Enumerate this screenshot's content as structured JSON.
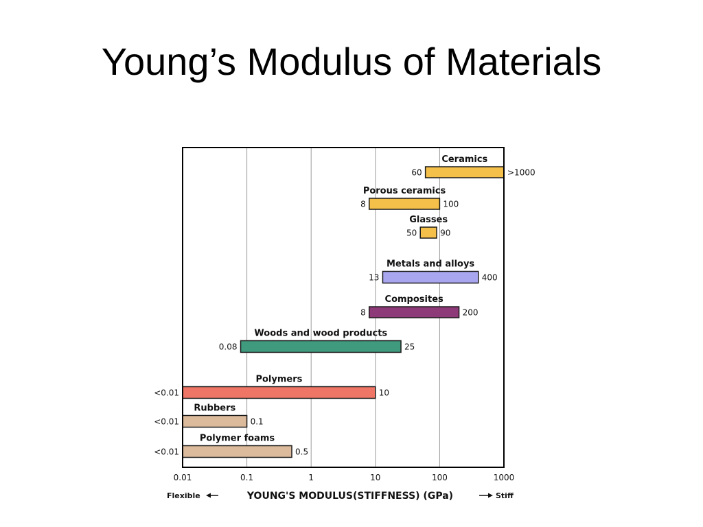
{
  "slide": {
    "title": "Young’s Modulus of Materials"
  },
  "chart_data": {
    "type": "bar",
    "orientation": "horizontal-range",
    "xscale": "log",
    "xlim": [
      0.01,
      1000
    ],
    "xticks": [
      "0.01",
      "0.1",
      "1",
      "10",
      "100",
      "1000"
    ],
    "xtick_values": [
      0.01,
      0.1,
      1,
      10,
      100,
      1000
    ],
    "xlabel": "YOUNG'S MODULUS(STIFFNESS) (GPa)",
    "xlabel_left": "Flexible",
    "xlabel_right": "Stiff",
    "grid": "vertical at each decade",
    "bars": [
      {
        "name": "Ceramics",
        "low": 60,
        "high": 1000,
        "low_label": "60",
        "high_label": ">1000",
        "color": "#f5c04a"
      },
      {
        "name": "Porous ceramics",
        "low": 8,
        "high": 100,
        "low_label": "8",
        "high_label": "100",
        "color": "#f5c04a"
      },
      {
        "name": "Glasses",
        "low": 50,
        "high": 90,
        "low_label": "50",
        "high_label": "90",
        "color": "#f5c04a"
      },
      {
        "name": "Metals and alloys",
        "low": 13,
        "high": 400,
        "low_label": "13",
        "high_label": "400",
        "color": "#a9a6f0"
      },
      {
        "name": "Composites",
        "low": 8,
        "high": 200,
        "low_label": "8",
        "high_label": "200",
        "color": "#8e3a78"
      },
      {
        "name": "Woods and wood products",
        "low": 0.08,
        "high": 25,
        "low_label": "0.08",
        "high_label": "25",
        "color": "#3f9a7e"
      },
      {
        "name": "Polymers",
        "low": 0.01,
        "high": 10,
        "low_label": "<0.01",
        "high_label": "10",
        "color": "#ef7666"
      },
      {
        "name": "Rubbers",
        "low": 0.01,
        "high": 0.1,
        "low_label": "<0.01",
        "high_label": "0.1",
        "color": "#dcbb9c"
      },
      {
        "name": "Polymer foams",
        "low": 0.01,
        "high": 0.5,
        "low_label": "<0.01",
        "high_label": "0.5",
        "color": "#dcbb9c"
      }
    ]
  }
}
